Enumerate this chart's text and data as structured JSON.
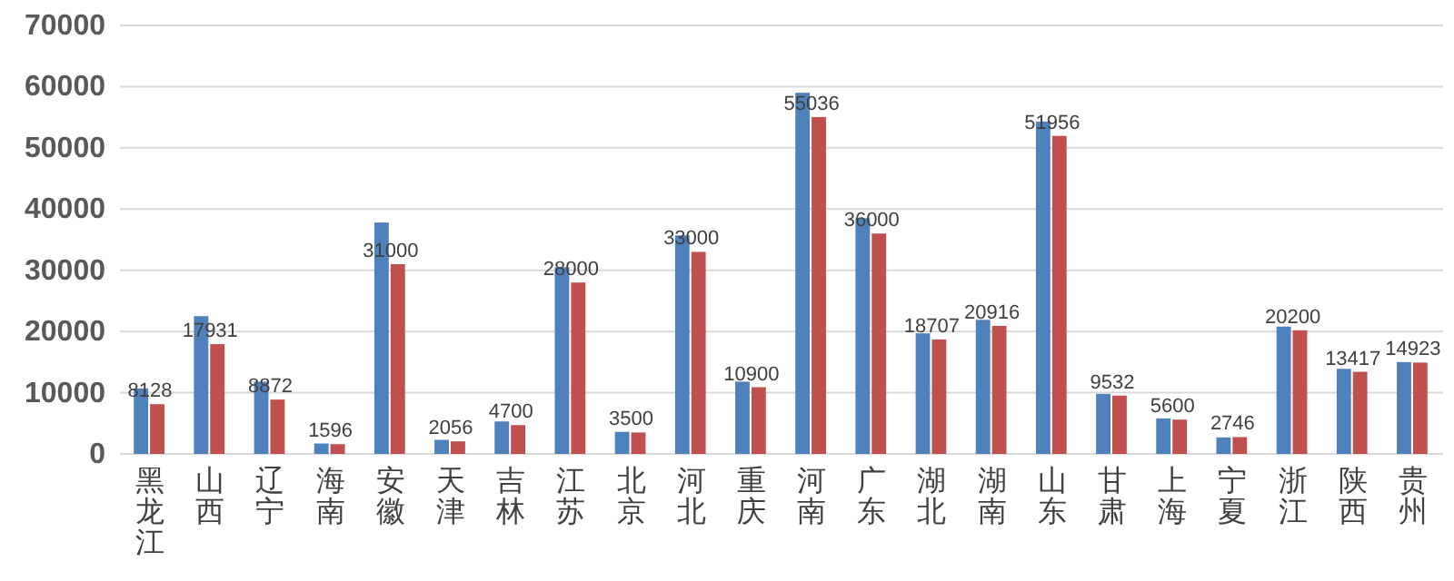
{
  "chart_data": {
    "type": "bar",
    "categories": [
      "黑龙江",
      "山西",
      "辽宁",
      "海南",
      "安徽",
      "天津",
      "吉林",
      "江苏",
      "北京",
      "河北",
      "重庆",
      "河南",
      "广东",
      "湖北",
      "湖南",
      "山东",
      "甘肃",
      "上海",
      "宁夏",
      "浙江",
      "陕西",
      "贵州"
    ],
    "series": [
      {
        "color": "#4f81bd",
        "values": [
          10700,
          22500,
          11800,
          1700,
          37800,
          2300,
          5300,
          30500,
          3600,
          35700,
          11800,
          59000,
          38500,
          19700,
          21900,
          54300,
          9800,
          5800,
          2700,
          20800,
          13900,
          15000
        ]
      },
      {
        "color": "#c0504d",
        "values": [
          8128,
          17931,
          8872,
          1596,
          31000,
          2056,
          4700,
          28000,
          3500,
          33000,
          10900,
          55036,
          36000,
          18707,
          20916,
          51956,
          9532,
          5600,
          2746,
          20200,
          13417,
          14923
        ],
        "value_labels": [
          "8128",
          "17931",
          "8872",
          "1596",
          "31000",
          "2056",
          "4700",
          "28000",
          "3500",
          "33000",
          "10900",
          "55036",
          "36000",
          "18707",
          "20916",
          "51956",
          "9532",
          "5600",
          "2746",
          "20200",
          "13417",
          "14923"
        ]
      }
    ],
    "ylim": [
      0,
      70000
    ],
    "yticks": [
      0,
      10000,
      20000,
      30000,
      40000,
      50000,
      60000,
      70000
    ],
    "grid": "y"
  }
}
